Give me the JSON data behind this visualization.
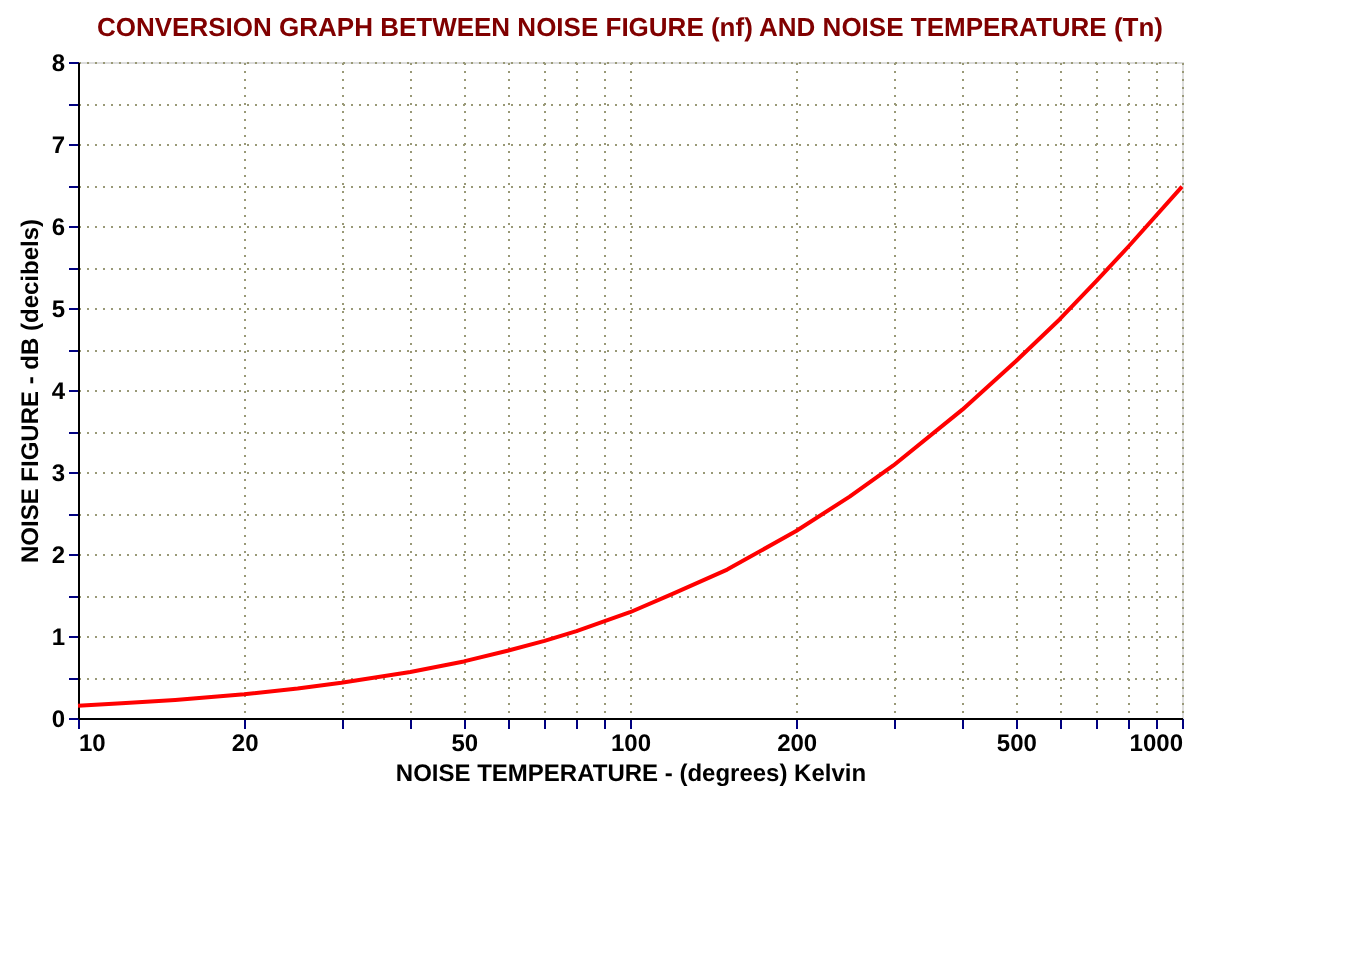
{
  "chart_data": {
    "type": "line",
    "title": "CONVERSION GRAPH BETWEEN NOISE FIGURE (nf) AND NOISE TEMPERATURE (Tn)",
    "xlabel": "NOISE TEMPERATURE - (degrees) Kelvin",
    "ylabel": "NOISE FIGURE - dB (decibels)",
    "x": [
      10,
      12,
      15,
      20,
      25,
      30,
      40,
      50,
      60,
      70,
      80,
      100,
      120,
      150,
      200,
      250,
      300,
      400,
      500,
      600,
      700,
      800,
      1000
    ],
    "series": [
      {
        "color": "#ff0000",
        "values": [
          0.15,
          0.18,
          0.22,
          0.29,
          0.36,
          0.43,
          0.56,
          0.69,
          0.82,
          0.94,
          1.06,
          1.29,
          1.52,
          1.81,
          2.28,
          2.7,
          3.08,
          3.76,
          4.35,
          4.86,
          5.33,
          5.75,
          6.48
        ]
      }
    ],
    "log": "x",
    "xlim": [
      10,
      1000
    ],
    "ylim": [
      0,
      8
    ],
    "xticks": [
      10,
      20,
      {
        "value": 30,
        "label": null
      },
      {
        "value": 40,
        "label": null
      },
      50,
      {
        "value": 60,
        "label": null
      },
      {
        "value": 70,
        "label": null
      },
      {
        "value": 80,
        "label": null
      },
      {
        "value": 90,
        "label": null
      },
      100,
      200,
      {
        "value": 300,
        "label": null
      },
      {
        "value": 400,
        "label": null
      },
      500,
      {
        "value": 600,
        "label": null
      },
      {
        "value": 700,
        "label": null
      },
      {
        "value": 800,
        "label": null
      },
      {
        "value": 900,
        "label": null
      },
      1000
    ],
    "yticks": [
      0,
      {
        "value": 0.5,
        "label": null
      },
      1,
      {
        "value": 1.5,
        "label": null
      },
      2,
      {
        "value": 2.5,
        "label": null
      },
      3,
      {
        "value": 3.5,
        "label": null
      },
      4,
      {
        "value": 4.5,
        "label": null
      },
      5,
      {
        "value": 5.5,
        "label": null
      },
      6,
      {
        "value": 6.5,
        "label": null
      },
      7,
      {
        "value": 7.5,
        "label": null
      },
      8
    ],
    "grid": true,
    "marker": "none",
    "line_style": "solid",
    "legend": false
  }
}
